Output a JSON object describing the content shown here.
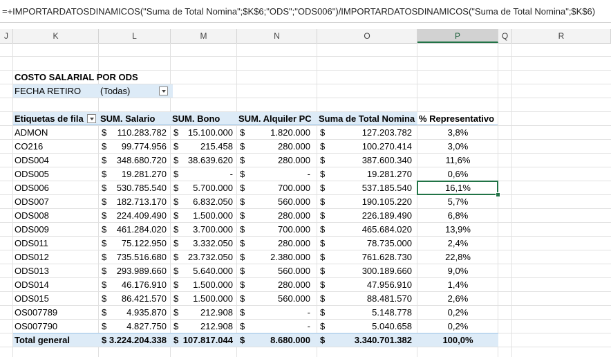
{
  "formula_bar": {
    "text": "=+IMPORTARDATOSDINAMICOS(\"Suma de Total Nomina\";$K$6;\"ODS\";\"ODS006\")/IMPORTARDATOSDINAMICOS(\"Suma de Total Nomina\";$K$6)"
  },
  "columns": [
    "J",
    "K",
    "L",
    "M",
    "N",
    "O",
    "P",
    "Q",
    "R"
  ],
  "selected_column": "P",
  "pivot": {
    "title": "COSTO SALARIAL POR ODS",
    "filter_label": "FECHA RETIRO",
    "filter_value": "(Todas)",
    "headers": [
      "Etiquetas de fila",
      "SUM. Salario",
      "SUM. Bono",
      "SUM. Alquiler PC",
      "Suma de Total Nomina",
      "% Representativo"
    ],
    "currency": "$",
    "rows": [
      {
        "label": "ADMON",
        "salario": "110.283.782",
        "bono": "15.100.000",
        "alquiler": "1.820.000",
        "total": "127.203.782",
        "pct": "3,8%"
      },
      {
        "label": "CO216",
        "salario": "99.774.956",
        "bono": "215.458",
        "alquiler": "280.000",
        "total": "100.270.414",
        "pct": "3,0%"
      },
      {
        "label": "ODS004",
        "salario": "348.680.720",
        "bono": "38.639.620",
        "alquiler": "280.000",
        "total": "387.600.340",
        "pct": "11,6%"
      },
      {
        "label": "ODS005",
        "salario": "19.281.270",
        "bono": "-",
        "alquiler": "-",
        "total": "19.281.270",
        "pct": "0,6%"
      },
      {
        "label": "ODS006",
        "salario": "530.785.540",
        "bono": "5.700.000",
        "alquiler": "700.000",
        "total": "537.185.540",
        "pct": "16,1%"
      },
      {
        "label": "ODS007",
        "salario": "182.713.170",
        "bono": "6.832.050",
        "alquiler": "560.000",
        "total": "190.105.220",
        "pct": "5,7%"
      },
      {
        "label": "ODS008",
        "salario": "224.409.490",
        "bono": "1.500.000",
        "alquiler": "280.000",
        "total": "226.189.490",
        "pct": "6,8%"
      },
      {
        "label": "ODS009",
        "salario": "461.284.020",
        "bono": "3.700.000",
        "alquiler": "700.000",
        "total": "465.684.020",
        "pct": "13,9%"
      },
      {
        "label": "ODS011",
        "salario": "75.122.950",
        "bono": "3.332.050",
        "alquiler": "280.000",
        "total": "78.735.000",
        "pct": "2,4%"
      },
      {
        "label": "ODS012",
        "salario": "735.516.680",
        "bono": "23.732.050",
        "alquiler": "2.380.000",
        "total": "761.628.730",
        "pct": "22,8%"
      },
      {
        "label": "ODS013",
        "salario": "293.989.660",
        "bono": "5.640.000",
        "alquiler": "560.000",
        "total": "300.189.660",
        "pct": "9,0%"
      },
      {
        "label": "ODS014",
        "salario": "46.176.910",
        "bono": "1.500.000",
        "alquiler": "280.000",
        "total": "47.956.910",
        "pct": "1,4%"
      },
      {
        "label": "ODS015",
        "salario": "86.421.570",
        "bono": "1.500.000",
        "alquiler": "560.000",
        "total": "88.481.570",
        "pct": "2,6%"
      },
      {
        "label": "OS007789",
        "salario": "4.935.870",
        "bono": "212.908",
        "alquiler": "-",
        "total": "5.148.778",
        "pct": "0,2%"
      },
      {
        "label": "OS007790",
        "salario": "4.827.750",
        "bono": "212.908",
        "alquiler": "-",
        "total": "5.040.658",
        "pct": "0,2%"
      }
    ],
    "total": {
      "label": "Total general",
      "salario": "3.224.204.338",
      "bono": "107.817.044",
      "alquiler": "8.680.000",
      "total": "3.340.701.382",
      "pct": "100,0%"
    }
  },
  "accent_color": "#217346",
  "header_band_color": "#ddebf7"
}
